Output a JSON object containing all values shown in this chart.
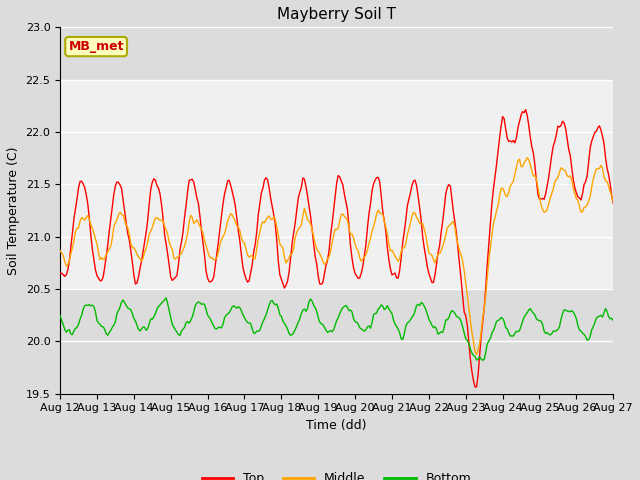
{
  "title": "Mayberry Soil T",
  "xlabel": "Time (dd)",
  "ylabel": "Soil Temperature (C)",
  "ylim": [
    19.5,
    23.0
  ],
  "xlim": [
    0,
    360
  ],
  "xtick_labels": [
    "Aug 12",
    "Aug 13",
    "Aug 14",
    "Aug 15",
    "Aug 16",
    "Aug 17",
    "Aug 18",
    "Aug 19",
    "Aug 20",
    "Aug 21",
    "Aug 22",
    "Aug 23",
    "Aug 24",
    "Aug 25",
    "Aug 26",
    "Aug 27"
  ],
  "xtick_positions": [
    0,
    24,
    48,
    72,
    96,
    120,
    144,
    168,
    192,
    216,
    240,
    264,
    288,
    312,
    336,
    360
  ],
  "top_color": "#FF0000",
  "middle_color": "#FFA500",
  "bottom_color": "#00BB00",
  "background_color": "#DCDCDC",
  "label_box_facecolor": "#FFFFC0",
  "label_box_edgecolor": "#AAAA00",
  "label_text": "MB_met",
  "label_text_color": "#CC0000",
  "legend_labels": [
    "Top",
    "Middle",
    "Bottom"
  ],
  "shaded_band_ymin": 20.5,
  "shaded_band_ymax": 22.5,
  "shaded_band_color": "#F0F0F0",
  "shaded_band_alpha": 1.0,
  "yticks": [
    19.5,
    20.0,
    20.5,
    21.0,
    21.5,
    22.0,
    22.5,
    23.0
  ]
}
